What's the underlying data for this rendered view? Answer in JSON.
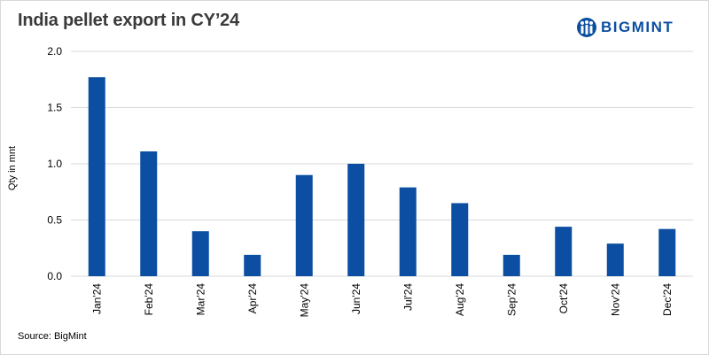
{
  "title": "India pellet export in CY’24",
  "brand": {
    "name": "BIGMINT",
    "color": "#0b4f9e",
    "icon": "bigmint-people-logo-icon"
  },
  "source": "Source: BigMint",
  "colors": {
    "bar": "#0b4ea2",
    "grid": "#d9d9d9"
  },
  "chart_data": {
    "type": "bar",
    "title": "India pellet export in CY’24",
    "xlabel": "",
    "ylabel": "Qty in mnt",
    "ylim": [
      0,
      2.0
    ],
    "yticks": [
      "0.0",
      "0.5",
      "1.0",
      "1.5",
      "2.0"
    ],
    "grid": true,
    "legend": "none",
    "categories": [
      "Jan'24",
      "Feb'24",
      "Mar'24",
      "Apr'24",
      "May'24",
      "Jun'24",
      "Jul'24",
      "Aug'24",
      "Sep'24",
      "Oct'24",
      "Nov'24",
      "Dec'24"
    ],
    "values": [
      1.77,
      1.11,
      0.4,
      0.19,
      0.9,
      1.0,
      0.79,
      0.65,
      0.19,
      0.44,
      0.29,
      0.42
    ]
  }
}
